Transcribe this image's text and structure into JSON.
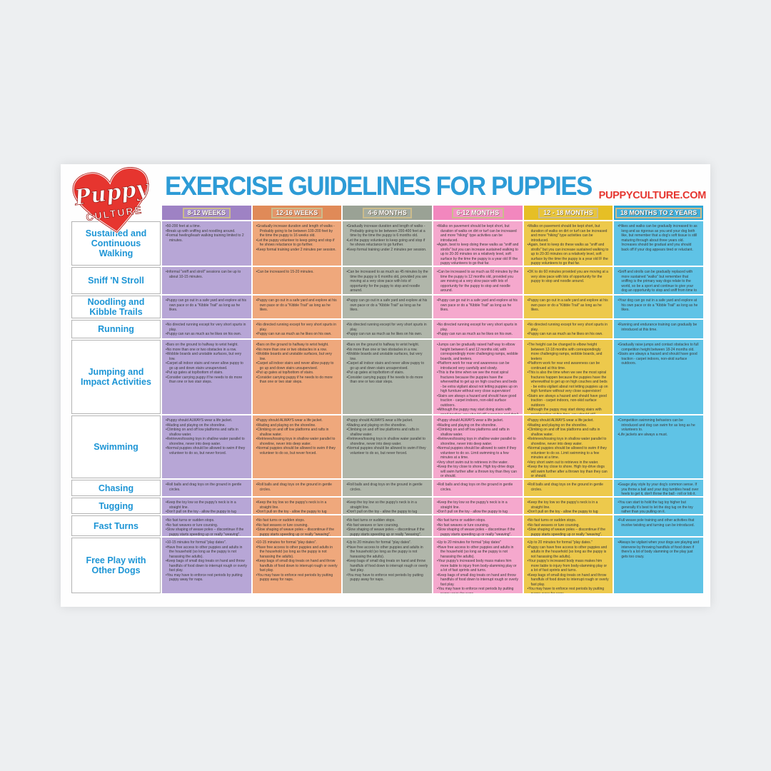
{
  "header": {
    "title": "EXERCISE GUIDELINES FOR PUPPIES",
    "website": "PUPPYCULTURE.COM",
    "title_color": "#2d9bd6",
    "website_color": "#e6352f"
  },
  "logo": {
    "script_text": "Puppy",
    "block_text": "CULTURE",
    "heart_color": "#e6352f"
  },
  "columns": [
    {
      "label": "8-12 WEEKS",
      "header_color": "#9e82c4",
      "body_color": "#b7a6d6"
    },
    {
      "label": "12-16 WEEKS",
      "header_color": "#e08a58",
      "body_color": "#efa87c"
    },
    {
      "label": "4-6 MONTHS",
      "header_color": "#9aa295",
      "body_color": "#b0b6aa"
    },
    {
      "label": "6-12 MONTHS",
      "header_color": "#f287be",
      "body_color": "#f5a8cd"
    },
    {
      "label": "12 - 18 MONTHS",
      "header_color": "#e6bf25",
      "body_color": "#edc94c"
    },
    {
      "label": "18 MONTHS TO 2 YEARS",
      "header_color": "#2ea6d6",
      "body_color": "#5fc3e6"
    }
  ],
  "rows": [
    {
      "label": "Sustained and Continuous Walking",
      "cells": [
        [
          "50-200 feet at a time.",
          "Break up with sniffing and noodling around.",
          "Formal heeling/leash walking training limited to 2 minutes."
        ],
        [
          "Gradually increase duration and length of walks - Probably going to be between 100-200 feet by the time the puppy is 16 weeks old.",
          "Let the puppy volunteer to keep going and stop if he shows reluctance to go further.",
          "Keep formal training under 2 minutes per session."
        ],
        [
          "Gradually increase duration and length of walks - Probably going to be between 200-400 feet at a time by the time the puppy is 6 months old.",
          "Let the puppy volunteer to keep going and stop if he shows reluctance to go further.",
          "Keep formal training under 2 minutes per session."
        ],
        [
          "Walks on pavement should be kept short, but duration of walks on dirt or turf can be increased and more \"hiking\" type activities can be introduced.",
          "Again, best to keep doing these walks as \"sniff and strolls\" but you can increase sustained walking to up to 20-30 minutes on a relatively level, soft surface by the time the puppy is a year old IF the puppy volunteers to go that far."
        ],
        [
          "Walks on pavement should be kept short, but duration of walks on dirt or turf can be increased and more \"hiking\" type activities can be introduced.",
          "Again, best to keep do these walks as \"sniff and strolls\" but you can increase sustained walking to up to 20-30 minutes on a relatively level, soft surface by the time the puppy is a year old IF the puppy volunteers to go that far."
        ],
        [
          "Hikes and walks can be gradually increased to as long and as rigorous as you and your dog both like, but remember that a dog's soft tissue is still maturing through about three years old. Increases should be gradual and you should back off if your dog appears tired or reluctant."
        ]
      ]
    },
    {
      "label": "Sniff 'N Stroll",
      "cells": [
        [
          "Informal \"sniff and stroll\" sessions can be up to about 10-15 minutes."
        ],
        [
          "Can be increased to 15-20 minutes."
        ],
        [
          "Can be increased to as much as 45 minutes by the time the puppy is 6 months old, provided you are moving at a very slow pace with lots of opportunity for the puppy to stop and noodle around."
        ],
        [
          "Can be increased to as much as 60 minutes by the time the puppy is 12 months old, provided you are moving at a very slow pace with lots of opportunity for the puppy to stop and noodle around."
        ],
        [
          "OK to do 60 minutes provided you are moving at a very slow pace with lots of opportunity for the puppy to stop and noodle around."
        ],
        [
          "Sniff and strolls can be gradually replaced with more sustained \"walks\" but remember that sniffing is the primary way dogs relate to the world, so be a sport and continue to give your dog an opportunity to stop and sniff from time to time."
        ]
      ]
    },
    {
      "label": "Noodling and Kibble Trails",
      "cells": [
        [
          "Puppy can go out in a safe yard and explore at his own pace or do a \"Kibble Trail\" as long as he likes."
        ],
        [
          "Puppy can go out in a safe yard and explore at his own pace or do a \"Kibble Trail\" as long as he likes."
        ],
        [
          "Puppy can go out in a safe yard and explore at his own pace or do a \"Kibble Trail\" as long as he likes."
        ],
        [
          "Puppy can go out in a safe yard and explore at his own pace or do a \"Kibble Trail\" as long as he likes."
        ],
        [
          "Puppy can go out in a safe yard and explore at his own pace or do a \"Kibble Trail\" as long as he likes."
        ],
        [
          "Your dog can go out in a safe yard and explore at his own pace or do a \"Kibble Trail\" as long as he likes."
        ]
      ]
    },
    {
      "label": "Running",
      "cells": [
        [
          "No directed running except for very short spurts in play.",
          "Puppy can run as much as he likes on his own."
        ],
        [
          "No directed running except for very short spurts in play.",
          "Puppy can run as much as he likes on his own."
        ],
        [
          "No directed running except for very short spurts in play.",
          "Puppy can run as much as he likes on his own."
        ],
        [
          "No directed running except for very short spurts in play.",
          "Puppy can run as much as he likes on his own."
        ],
        [
          "No directed running except for very short spurts in play.",
          "Puppy can run as much as he likes on his own."
        ],
        [
          "Running and endurance training can gradually be introduced at this time."
        ]
      ]
    },
    {
      "label": "Jumping and Impact Activities",
      "cells": [
        [
          "Bars on the ground to halfway to wrist height.",
          "No more than one or two obstacles in a row.",
          "Wobble boards and unstable surfaces, but very low.",
          "Carpet all indoor stairs and never allow puppy to go up and down stairs unsupervised.",
          "Put up gates at top/bottom of stairs.",
          "Consider carrying puppy if he needs to do more than one or two stair steps."
        ],
        [
          "Bars on the ground to halfway to wrist height.",
          "No more than one or two obstacles in a row.",
          "Wobble boards and unstable surfaces, but very low.",
          "Carpet all indoor stairs and never allow puppy to go up and down stairs unsupervised.",
          "Put up gates at top/bottom of stairs.",
          "Consider carrying puppy if he needs to do more than one or two stair steps."
        ],
        [
          "Bars on the ground to halfway to wrist height.",
          "No more than one or two obstacles in a row.",
          "Wobble boards and unstable surfaces, but very low.",
          "Carpet all indoor stairs and never allow puppy to go up and down stairs unsupervised.",
          "Put up gates at top/bottom of stairs.",
          "Consider carrying puppy if he needs to do more than one or two stair steps."
        ],
        [
          "Jumps can be gradually raised half way to elbow height between 6 and 12 months old, with correspondingly more challenging ramps, wobble boards, and teeters.",
          "Platform work for rear end awareness can be introduced very carefully and slowly.",
          "This is the time when we see the most spiral fractures because the puppies have the wherewithal to get up on high couches and beds - be extra vigilant about not letting puppies up on high furniture without very close supervision!",
          "Stairs are always a hazard and should have good traction - carpet indoors, non-skid surface outdoors.",
          "Although the puppy may start doing stairs with good traction, you should still supervise and don't let him run down the stairs with other dogs."
        ],
        [
          "The height can be changed to elbow height between 12-18 months with correspondingly more challenging ramps, wobble boards, and teeters",
          "Platform work for rear end awareness can be continued at this time.",
          "This is also the time when we see the most spiral fractures happen because the puppies have the wherewithal to get up on high couches and beds - be extra vigilant about not letting puppies up on high furniture without very close supervision!",
          "Stairs are always a hazard and should have good traction - carpet indoors, non-skid surface outdoors",
          "Although the puppy may start doing stairs with good traction at this time, you should still supervise and don't let him run down the stairs with other dogs"
        ],
        [
          "Gradually raise jumps and contact obstacles to full competition height between 18-24 months old.",
          "Stairs are always a hazard and should have good traction - carpet indoors, non-skid surface outdoors."
        ]
      ]
    },
    {
      "label": "Swimming",
      "cells": [
        [
          "Puppy should ALWAYS wear a life jacket.",
          "Wading and playing on the shoreline.",
          "Climbing on and off low platforms and rafts in shallow water.",
          "Retrieves/tossing toys in shallow water parallel to shoreline, never into deep water.",
          "Normal puppies should be allowed to swim if they volunteer to do so, but never forced."
        ],
        [
          "Puppy should ALWAYS wear a life jacket.",
          "Wading and playing on the shoreline.",
          "Climbing on and off low platforms and rafts in shallow water.",
          "Retrieves/tossing toys in shallow water parallel to shoreline, never into deep water.",
          "Normal puppies should be allowed to swim if they volunteer to do so, but never forced."
        ],
        [
          "Puppy should ALWAYS wear a life jacket.",
          "Wading and playing on the shoreline.",
          "Climbing on and off low platforms and rafts in shallow water.",
          "Retrieves/tossing toys in shallow water parallel to shoreline, never into deep water.",
          "Normal puppies should be allowed to swim if they volunteer to do so, but never forced."
        ],
        [
          "Puppy should ALWAYS wear a life jacket.",
          "Wading and playing on the shoreline.",
          "Climbing on and off low platforms and rafts in shallow water.",
          "Retrieves/tossing toys in shallow water parallel to shoreline, never into deep water.",
          "Normal puppies should be allowed to swim if they volunteer to do so. Limit swimming to a few minutes at a time.",
          "Very short swim out to retrieves in the water.",
          "Keep the toy close to shore. High toy-drive dogs will swim further after a thrown toy than they can or should."
        ],
        [
          "Puppy should ALWAYS wear a life jacket.",
          "Wading and playing on the shoreline.",
          "Climbing on and off low platforms and rafts in shallow water.",
          "Retrieves/tossing toys in shallow water parallel to shoreline, never into deep water.",
          "Normal puppies should be allowed to swim if they volunteer to do so. Limit swimming to a few minutes at a time.",
          "Very short swim out to retrieves in the water.",
          "Keep the toy close to shore. High toy-drive dogs will swim further after a thrown toy than they can or should."
        ],
        [
          "Competition swimming behaviors can be introduced and dog can swim for as long as he volunteers to.",
          "Life jackets are always a must."
        ]
      ]
    },
    {
      "label": "Chasing",
      "cells": [
        [
          "Roll balls and drag toys on the ground in gentle circles."
        ],
        [
          "Roll balls and drag toys on the ground in gentle circles."
        ],
        [
          "Roll balls and drag toys on the ground in gentle circles."
        ],
        [
          "Roll balls and drag toys on the ground in gentle circles."
        ],
        [
          "Roll balls and drag toys on the ground in gentle circles."
        ],
        [
          "Gauge play style by your dog's common sense. If you throw a ball and your dog tumbles head over heels to get it, don't throw the ball - roll or lob it."
        ]
      ]
    },
    {
      "label": "Tugging",
      "cells": [
        [
          "Keep the toy low so the puppy's neck is in a straight line.",
          "Don't pull on the toy - allow the puppy to tug against you."
        ],
        [
          "Keep the toy low so the puppy's neck is in a straight line.",
          "Don't pull on the toy - allow the puppy to tug against you."
        ],
        [
          "Keep the toy low so the puppy's neck is in a straight line.",
          "Don't pull on the toy - allow the puppy to tug against you."
        ],
        [
          "Keep the toy low so the puppy's neck is in a straight line.",
          "Don't pull on the toy - allow the puppy to tug against you."
        ],
        [
          "Keep the toy low so the puppy's neck is in a straight line.",
          "Don't pull on the toy - allow the puppy to tug against you."
        ],
        [
          "You can start to hold the tug toy higher but generally it's best to let the dog tug on the toy rather than you pulling on it."
        ]
      ]
    },
    {
      "label": "Fast Turns",
      "cells": [
        [
          "No fast turns or sudden stops.",
          "No fast weaves or lure coursing.",
          "Slow shaping of weave poles – discontinue if the puppy starts speeding up or really \"weaving\"."
        ],
        [
          "No fast turns or sudden stops.",
          "No fast weaves or lure coursing.",
          "Slow shaping of weave poles – discontinue if the puppy starts speeding up or really \"weaving\"."
        ],
        [
          "No fast turns or sudden stops.",
          "No fast weaves or lure coursing.",
          "Slow shaping of weave poles – discontinue if the puppy starts speeding up or really \"weaving\"."
        ],
        [
          "No fast turns or sudden stops.",
          "No fast weaves or lure coursing.",
          "Slow shaping of weave poles – discontinue if the puppy starts speeding up or really \"weaving\"."
        ],
        [
          "No fast turns or sudden stops.",
          "No fast weaves or lure coursing.",
          "Slow shaping of weave poles – discontinue if the puppy starts speeding up or really \"weaving\"."
        ],
        [
          "Full weave pole training and other activities that involve twisting and turning can be introduced."
        ]
      ]
    },
    {
      "label": "Free Play with Other Dogs",
      "cells": [
        [
          "10-15 minutes for formal \"play dates\".",
          "Have free access to other puppies and adults in the household (so long as the puppy is not harassing the adults).",
          "Keep bags of small dog treats on hand and throw handfuls of food down to interrupt rough or overly fast play.",
          "You may have to enforce rest periods by putting puppy away for naps."
        ],
        [
          "10-15 minutes for formal \"play dates\".",
          "Have free access to other puppies and adults in the household (so long as the puppy is not harassing the adults).",
          "Keep bags of small dog treats on hand and throw handfuls of food down to interrupt rough or overly fast play.",
          "You may have to enforce rest periods by putting puppy away for naps."
        ],
        [
          "Up to 20 minutes for formal \"play dates\".",
          "Have free access to other puppies and adults in the household (so long as the puppy is not harassing the adults).",
          "Keep bags of small dog treats on hand and throw handfuls of food down to interrupt rough or overly fast play.",
          "You may have to enforce rest periods by putting puppy away for naps."
        ],
        [
          "Up to 20 minutes for formal \"play dates\"",
          "Have free access to other puppies and adults in the household (so long as the puppy is not harassing the adults).",
          "Your puppy's increased body mass makes him more liable to injury from body-slamming play or a lot of fast sprints and turns.",
          "Keep bags of small dog treats on hand and throw handfuls of food down to interrupt rough or overly fast play.",
          "You may have to enforce rest periods by putting puppy away for naps."
        ],
        [
          "Up to 20 minutes for formal \"play dates.\"",
          "Puppy can have free access to other puppies and adults in the household (so long as the puppy is not harassing the adults).",
          "Your puppy's increased body mass makes him more liable to injury from body-slamming play or a lot of fast sprints and turns.",
          "Keep bags of small dog treats on hand and throw handfuls of food down to interrupt rough or overly fast play.",
          "You may have to enforce rest periods by putting puppy away for naps."
        ],
        [
          "Always be vigilant when your dogs are playing and intervene by throwing handfuls of food down if there's a lot of body slamming or the play just gets too crazy."
        ]
      ]
    }
  ]
}
